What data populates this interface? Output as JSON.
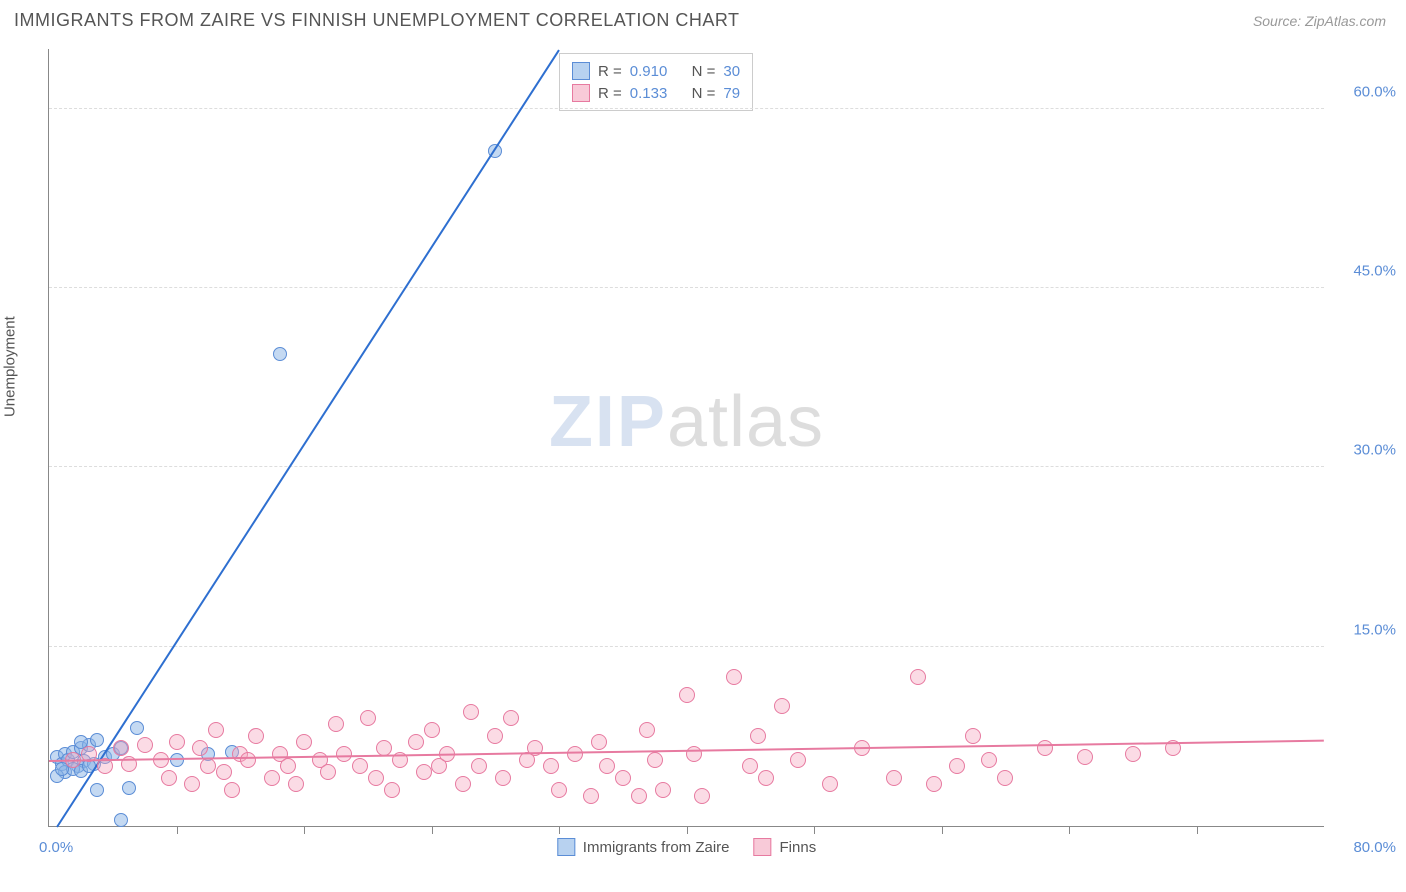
{
  "title": "IMMIGRANTS FROM ZAIRE VS FINNISH UNEMPLOYMENT CORRELATION CHART",
  "source": "Source: ZipAtlas.com",
  "ylabel": "Unemployment",
  "watermark": {
    "part1": "ZIP",
    "part2": "atlas"
  },
  "chart": {
    "type": "scatter",
    "xlim": [
      0,
      80
    ],
    "ylim": [
      0,
      65
    ],
    "x_min_label": "0.0%",
    "x_max_label": "80.0%",
    "y_ticks": [
      {
        "value": 15,
        "label": "15.0%"
      },
      {
        "value": 30,
        "label": "30.0%"
      },
      {
        "value": 45,
        "label": "45.0%"
      },
      {
        "value": 60,
        "label": "60.0%"
      }
    ],
    "x_tick_positions": [
      8,
      16,
      24,
      32,
      40,
      48,
      56,
      64,
      72
    ],
    "background_color": "#ffffff",
    "grid_color": "#dddddd",
    "axis_color": "#888888",
    "series": [
      {
        "id": "zaire",
        "name": "Immigrants from Zaire",
        "color": "#5b8dd6",
        "fill": "rgba(137,180,230,0.5)",
        "marker_size": 14,
        "r_label": "R =",
        "r_value": "0.910",
        "n_label": "N =",
        "n_value": "30",
        "trend": {
          "x1": 0.5,
          "y1": 0,
          "x2": 32,
          "y2": 65,
          "width": 2,
          "color": "#2e6fd0"
        },
        "points": [
          [
            0.5,
            5.8
          ],
          [
            0.8,
            5.2
          ],
          [
            1.0,
            6.0
          ],
          [
            1.2,
            5.5
          ],
          [
            1.5,
            6.2
          ],
          [
            1.8,
            5.0
          ],
          [
            2.0,
            6.5
          ],
          [
            2.2,
            5.4
          ],
          [
            2.5,
            6.8
          ],
          [
            2.8,
            5.2
          ],
          [
            3.0,
            7.2
          ],
          [
            1.0,
            4.5
          ],
          [
            1.5,
            4.8
          ],
          [
            2.0,
            4.6
          ],
          [
            2.5,
            5.0
          ],
          [
            0.5,
            4.2
          ],
          [
            0.8,
            4.8
          ],
          [
            3.5,
            5.8
          ],
          [
            4.0,
            6.0
          ],
          [
            4.5,
            6.5
          ],
          [
            5.5,
            8.2
          ],
          [
            3.0,
            3.0
          ],
          [
            5.0,
            3.2
          ],
          [
            4.5,
            0.5
          ],
          [
            8.0,
            5.5
          ],
          [
            10.0,
            6.0
          ],
          [
            11.5,
            6.2
          ],
          [
            14.5,
            39.5
          ],
          [
            28.0,
            56.5
          ],
          [
            2.0,
            7.0
          ]
        ]
      },
      {
        "id": "finns",
        "name": "Finns",
        "color": "#e77aa0",
        "fill": "rgba(244,166,190,0.4)",
        "marker_size": 16,
        "r_label": "R =",
        "r_value": "0.133",
        "n_label": "N =",
        "n_value": "79",
        "trend": {
          "x1": 0,
          "y1": 5.5,
          "x2": 80,
          "y2": 7.2,
          "width": 2,
          "color": "#e77aa0"
        },
        "points": [
          [
            1.5,
            5.5
          ],
          [
            2.5,
            6.0
          ],
          [
            3.5,
            5.0
          ],
          [
            4.5,
            6.5
          ],
          [
            5.0,
            5.2
          ],
          [
            6.0,
            6.8
          ],
          [
            7.0,
            5.5
          ],
          [
            7.5,
            4.0
          ],
          [
            8.0,
            7.0
          ],
          [
            9.0,
            3.5
          ],
          [
            9.5,
            6.5
          ],
          [
            10.0,
            5.0
          ],
          [
            10.5,
            8.0
          ],
          [
            11.0,
            4.5
          ],
          [
            11.5,
            3.0
          ],
          [
            12.0,
            6.0
          ],
          [
            12.5,
            5.5
          ],
          [
            13.0,
            7.5
          ],
          [
            14.0,
            4.0
          ],
          [
            14.5,
            6.0
          ],
          [
            15.0,
            5.0
          ],
          [
            15.5,
            3.5
          ],
          [
            16.0,
            7.0
          ],
          [
            17.0,
            5.5
          ],
          [
            17.5,
            4.5
          ],
          [
            18.0,
            8.5
          ],
          [
            18.5,
            6.0
          ],
          [
            19.5,
            5.0
          ],
          [
            20.0,
            9.0
          ],
          [
            20.5,
            4.0
          ],
          [
            21.0,
            6.5
          ],
          [
            21.5,
            3.0
          ],
          [
            22.0,
            5.5
          ],
          [
            23.0,
            7.0
          ],
          [
            23.5,
            4.5
          ],
          [
            24.0,
            8.0
          ],
          [
            24.5,
            5.0
          ],
          [
            25.0,
            6.0
          ],
          [
            26.0,
            3.5
          ],
          [
            26.5,
            9.5
          ],
          [
            27.0,
            5.0
          ],
          [
            28.0,
            7.5
          ],
          [
            28.5,
            4.0
          ],
          [
            29.0,
            9.0
          ],
          [
            30.0,
            5.5
          ],
          [
            30.5,
            6.5
          ],
          [
            31.5,
            5.0
          ],
          [
            32.0,
            3.0
          ],
          [
            33.0,
            6.0
          ],
          [
            34.0,
            2.5
          ],
          [
            34.5,
            7.0
          ],
          [
            35.0,
            5.0
          ],
          [
            36.0,
            4.0
          ],
          [
            37.0,
            2.5
          ],
          [
            37.5,
            8.0
          ],
          [
            38.0,
            5.5
          ],
          [
            38.5,
            3.0
          ],
          [
            40.0,
            11.0
          ],
          [
            40.5,
            6.0
          ],
          [
            41.0,
            2.5
          ],
          [
            43.0,
            12.5
          ],
          [
            44.0,
            5.0
          ],
          [
            44.5,
            7.5
          ],
          [
            45.0,
            4.0
          ],
          [
            46.0,
            10.0
          ],
          [
            47.0,
            5.5
          ],
          [
            49.0,
            3.5
          ],
          [
            51.0,
            6.5
          ],
          [
            53.0,
            4.0
          ],
          [
            54.5,
            12.5
          ],
          [
            55.5,
            3.5
          ],
          [
            57.0,
            5.0
          ],
          [
            58.0,
            7.5
          ],
          [
            59.0,
            5.5
          ],
          [
            60.0,
            4.0
          ],
          [
            62.5,
            6.5
          ],
          [
            65.0,
            5.8
          ],
          [
            68.0,
            6.0
          ],
          [
            70.5,
            6.5
          ]
        ]
      }
    ]
  },
  "legend_top": {
    "r_prefix": "R =",
    "n_prefix": "N ="
  },
  "legend_bottom": [
    {
      "swatch": "blue",
      "label": "Immigrants from Zaire"
    },
    {
      "swatch": "pink",
      "label": "Finns"
    }
  ]
}
